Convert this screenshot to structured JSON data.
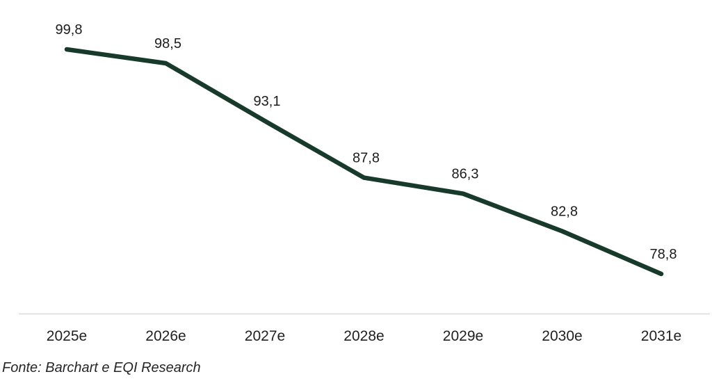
{
  "chart_data": {
    "type": "line",
    "title": "",
    "xlabel": "",
    "ylabel": "",
    "categories": [
      "2025e",
      "2026e",
      "2027e",
      "2028e",
      "2029e",
      "2030e",
      "2031e"
    ],
    "values": [
      99.8,
      98.5,
      93.1,
      87.8,
      86.3,
      82.8,
      78.8
    ],
    "point_labels": [
      "99,8",
      "98,5",
      "93,1",
      "87,8",
      "86,3",
      "82,8",
      "78,8"
    ],
    "series_name": "",
    "legend_position": "none",
    "grid": false,
    "y_axis_visible": false,
    "x_axis_visible": true,
    "ylim": [
      78.8,
      99.8
    ],
    "line_color": "#173a2b",
    "label_color": "#1c1c1c",
    "tick_label_color": "#212121",
    "axis_color": "#d9d9d9"
  },
  "footer": {
    "source": "Fonte: Barchart e EQI Research"
  }
}
